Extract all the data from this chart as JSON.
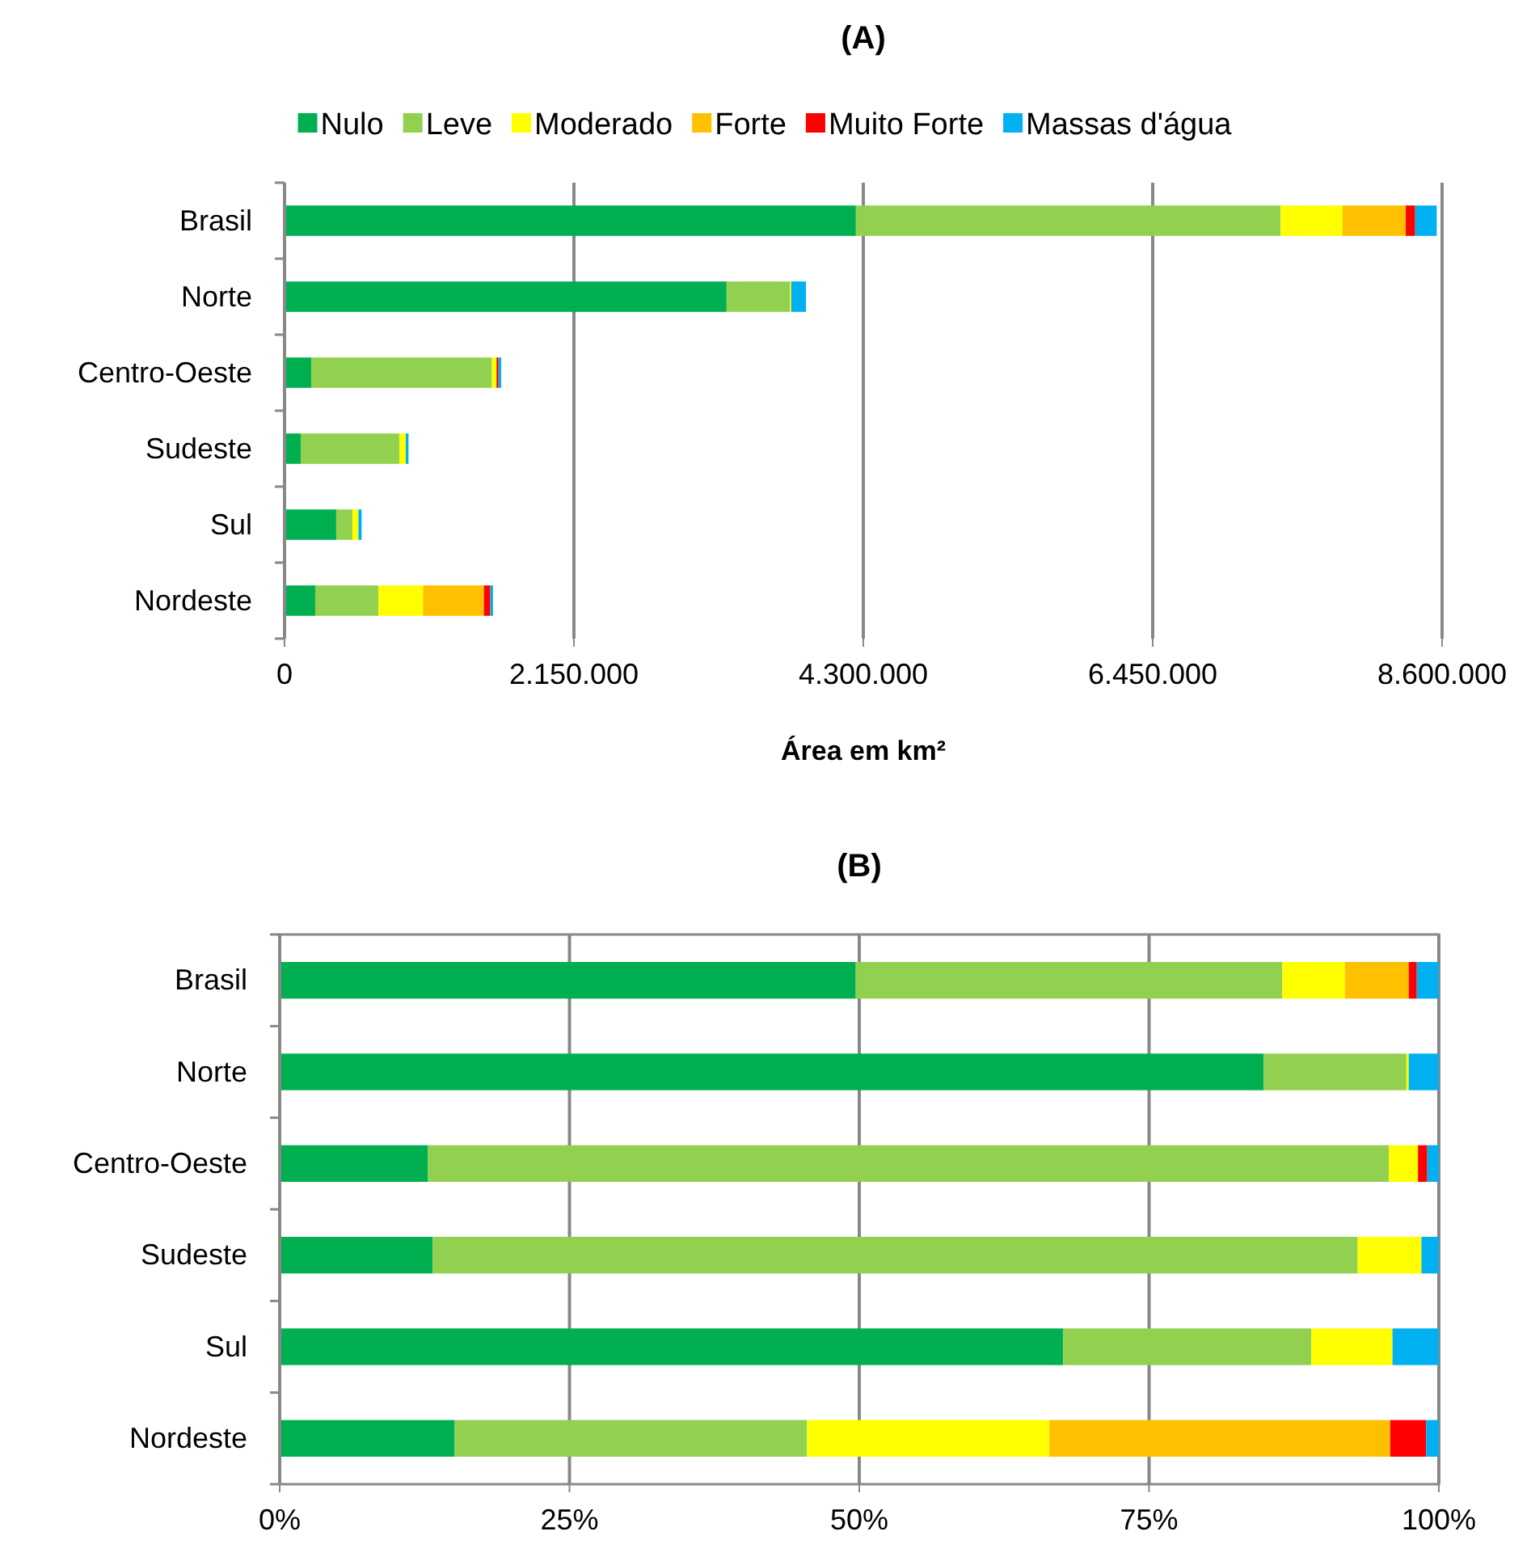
{
  "chart_data": [
    {
      "type": "bar",
      "orientation": "horizontal",
      "stacked": true,
      "title": "(A)",
      "xlabel": "Área em km²",
      "categories": [
        "Brasil",
        "Norte",
        "Centro-Oeste",
        "Sudeste",
        "Sul",
        "Nordeste"
      ],
      "series": [
        {
          "name": "Nulo",
          "color": "#00b050",
          "values": [
            4245000,
            3284000,
            198000,
            120000,
            384000,
            228000
          ]
        },
        {
          "name": "Leve",
          "color": "#92d050",
          "values": [
            3155000,
            470000,
            1343000,
            733000,
            120000,
            469000
          ]
        },
        {
          "name": "Moderado",
          "color": "#ffff00",
          "values": [
            460000,
            10000,
            34000,
            48000,
            45000,
            332000
          ]
        },
        {
          "name": "Forte",
          "color": "#ffc000",
          "values": [
            470000,
            0,
            0,
            0,
            0,
            452000
          ]
        },
        {
          "name": "Muito Forte",
          "color": "#ff0000",
          "values": [
            70000,
            0,
            15000,
            0,
            0,
            48000
          ]
        },
        {
          "name": "Massas d'água",
          "color": "#00b0f0",
          "values": [
            160000,
            110000,
            20000,
            20000,
            24000,
            20000
          ]
        }
      ],
      "xlim": [
        0,
        8600000
      ],
      "xticks": [
        0,
        {
          "value": 2150000,
          "label": "2.150.000"
        },
        {
          "value": 4300000,
          "label": "4.300.000"
        },
        {
          "value": 6450000,
          "label": "6.450.000"
        },
        {
          "value": 8600000,
          "label": "8.600.000"
        }
      ],
      "grid": "x",
      "legend": "top"
    },
    {
      "type": "bar",
      "orientation": "horizontal",
      "stacked": true,
      "title": "(B)",
      "categories": [
        "Brasil",
        "Norte",
        "Centro-Oeste",
        "Sudeste",
        "Sul",
        "Nordeste"
      ],
      "series": [
        {
          "color": "#00b050",
          "values": [
            49.7,
            84.9,
            12.8,
            13.2,
            67.6,
            15.1
          ]
        },
        {
          "color": "#92d050",
          "values": [
            36.8,
            12.3,
            82.9,
            79.8,
            21.4,
            30.4
          ]
        },
        {
          "color": "#ffff00",
          "values": [
            5.4,
            0.2,
            2.5,
            5.5,
            7.0,
            20.9
          ]
        },
        {
          "color": "#ffc000",
          "values": [
            5.5,
            0,
            0,
            0,
            0,
            29.4
          ]
        },
        {
          "color": "#ff0000",
          "values": [
            0.7,
            0,
            0.8,
            0,
            0,
            3.1
          ]
        },
        {
          "color": "#00b0f0",
          "values": [
            1.9,
            2.6,
            1.0,
            1.5,
            4.0,
            1.1
          ]
        }
      ],
      "xlim": [
        0,
        100
      ],
      "xticks": [
        {
          "value": 0,
          "label": "0%"
        },
        {
          "value": 25,
          "label": "25%"
        },
        {
          "value": 50,
          "label": "50%"
        },
        {
          "value": 75,
          "label": "75%"
        },
        {
          "value": 100,
          "label": "100%"
        }
      ],
      "grid": "x",
      "legend": false
    }
  ]
}
